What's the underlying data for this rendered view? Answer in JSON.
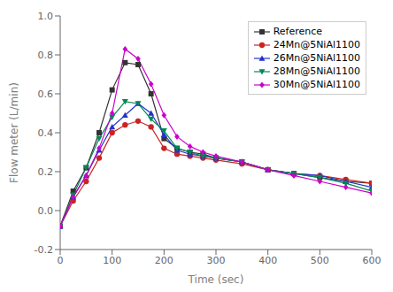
{
  "chart_data": {
    "type": "line",
    "xlabel": "Time (sec)",
    "ylabel": "Flow meter (L/min)",
    "xlim": [
      0,
      600
    ],
    "ylim": [
      -0.2,
      1.0
    ],
    "xticks": [
      0,
      100,
      200,
      300,
      400,
      500,
      600
    ],
    "yticks": [
      -0.2,
      {
        "value": 0,
        "label": "0.0"
      },
      0.2,
      0.4,
      0.6,
      0.8,
      {
        "value": 1,
        "label": "1.0"
      }
    ],
    "legend": "upper right",
    "grid": false,
    "x": [
      0,
      25,
      50,
      75,
      100,
      125,
      150,
      175,
      200,
      225,
      250,
      275,
      300,
      350,
      400,
      450,
      500,
      550,
      600
    ],
    "series": [
      {
        "name": "Reference",
        "color": "#333333",
        "marker": "square",
        "values": [
          -0.08,
          0.1,
          0.22,
          0.4,
          0.62,
          0.76,
          0.75,
          0.6,
          0.37,
          0.32,
          0.3,
          0.29,
          0.27,
          0.25,
          0.21,
          0.19,
          0.17,
          0.15,
          0.14
        ]
      },
      {
        "name": "24Mn@5NiAl1100",
        "color": "#cc2222",
        "marker": "circle",
        "values": [
          -0.08,
          0.05,
          0.15,
          0.27,
          0.4,
          0.44,
          0.46,
          0.43,
          0.32,
          0.29,
          0.28,
          0.27,
          0.26,
          0.24,
          0.21,
          0.19,
          0.18,
          0.16,
          0.14
        ]
      },
      {
        "name": "26Mn@5NiAl1100",
        "color": "#2233cc",
        "marker": "triangle-up",
        "values": [
          -0.08,
          0.07,
          0.18,
          0.31,
          0.43,
          0.49,
          0.55,
          0.5,
          0.39,
          0.31,
          0.29,
          0.28,
          0.27,
          0.25,
          0.21,
          0.19,
          0.18,
          0.15,
          0.12
        ]
      },
      {
        "name": "28Mn@5NiAl1100",
        "color": "#008855",
        "marker": "triangle-down",
        "values": [
          -0.08,
          0.08,
          0.22,
          0.37,
          0.48,
          0.56,
          0.55,
          0.47,
          0.41,
          0.32,
          0.3,
          0.28,
          0.27,
          0.25,
          0.21,
          0.19,
          0.17,
          0.14,
          0.1
        ]
      },
      {
        "name": "30Mn@5NiAl1100",
        "color": "#cc00cc",
        "marker": "diamond",
        "values": [
          -0.08,
          0.07,
          0.18,
          0.32,
          0.5,
          0.83,
          0.78,
          0.65,
          0.49,
          0.38,
          0.33,
          0.3,
          0.28,
          0.25,
          0.21,
          0.18,
          0.15,
          0.12,
          0.09
        ]
      }
    ]
  }
}
